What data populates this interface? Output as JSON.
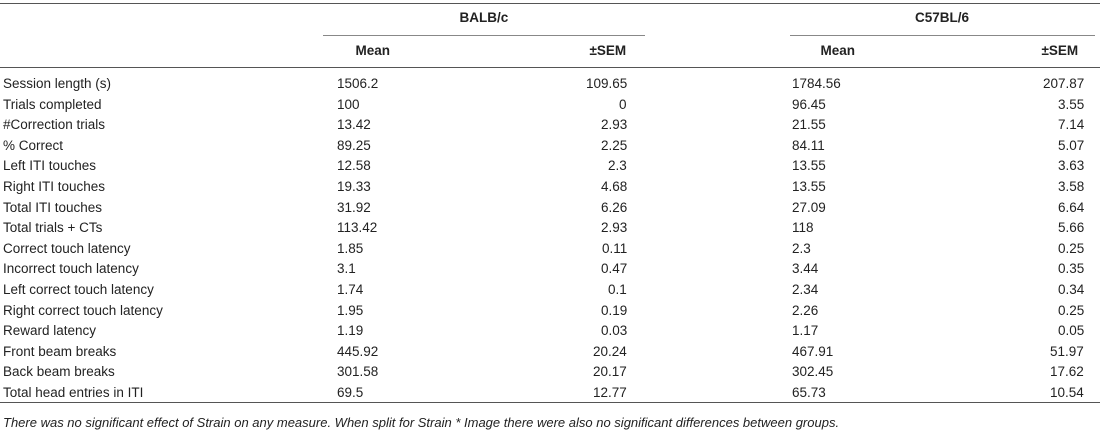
{
  "table": {
    "groups": [
      "BALB/c",
      "C57BL/6"
    ],
    "columns": [
      "Mean",
      "±SEM",
      "Mean",
      "±SEM"
    ],
    "rows": [
      [
        "Session length (s)",
        "1506.2",
        "109.65",
        "1784.56",
        "207.87"
      ],
      [
        "Trials completed",
        "100",
        "0",
        "96.45",
        "3.55"
      ],
      [
        "#Correction trials",
        "13.42",
        "2.93",
        "21.55",
        "7.14"
      ],
      [
        "% Correct",
        "89.25",
        "2.25",
        "84.11",
        "5.07"
      ],
      [
        "Left ITI touches",
        "12.58",
        "2.3",
        "13.55",
        "3.63"
      ],
      [
        "Right ITI touches",
        "19.33",
        "4.68",
        "13.55",
        "3.58"
      ],
      [
        "Total ITI touches",
        "31.92",
        "6.26",
        "27.09",
        "6.64"
      ],
      [
        "Total trials + CTs",
        "113.42",
        "2.93",
        "118",
        "5.66"
      ],
      [
        "Correct touch latency",
        "1.85",
        "0.11",
        "2.3",
        "0.25"
      ],
      [
        "Incorrect touch latency",
        "3.1",
        "0.47",
        "3.44",
        "0.35"
      ],
      [
        "Left correct touch latency",
        "1.74",
        "0.1",
        "2.34",
        "0.34"
      ],
      [
        "Right correct touch latency",
        "1.95",
        "0.19",
        "2.26",
        "0.25"
      ],
      [
        "Reward latency",
        "1.19",
        "0.03",
        "1.17",
        "0.05"
      ],
      [
        "Front beam breaks",
        "445.92",
        "20.24",
        "467.91",
        "51.97"
      ],
      [
        "Back beam breaks",
        "301.58",
        "20.17",
        "302.45",
        "17.62"
      ],
      [
        "Total head entries in ITI",
        "69.5",
        "12.77",
        "65.73",
        "10.54"
      ]
    ]
  },
  "footnote": "There was no significant effect of Strain on any measure. When split for Strain * Image there were also no significant differences between groups."
}
